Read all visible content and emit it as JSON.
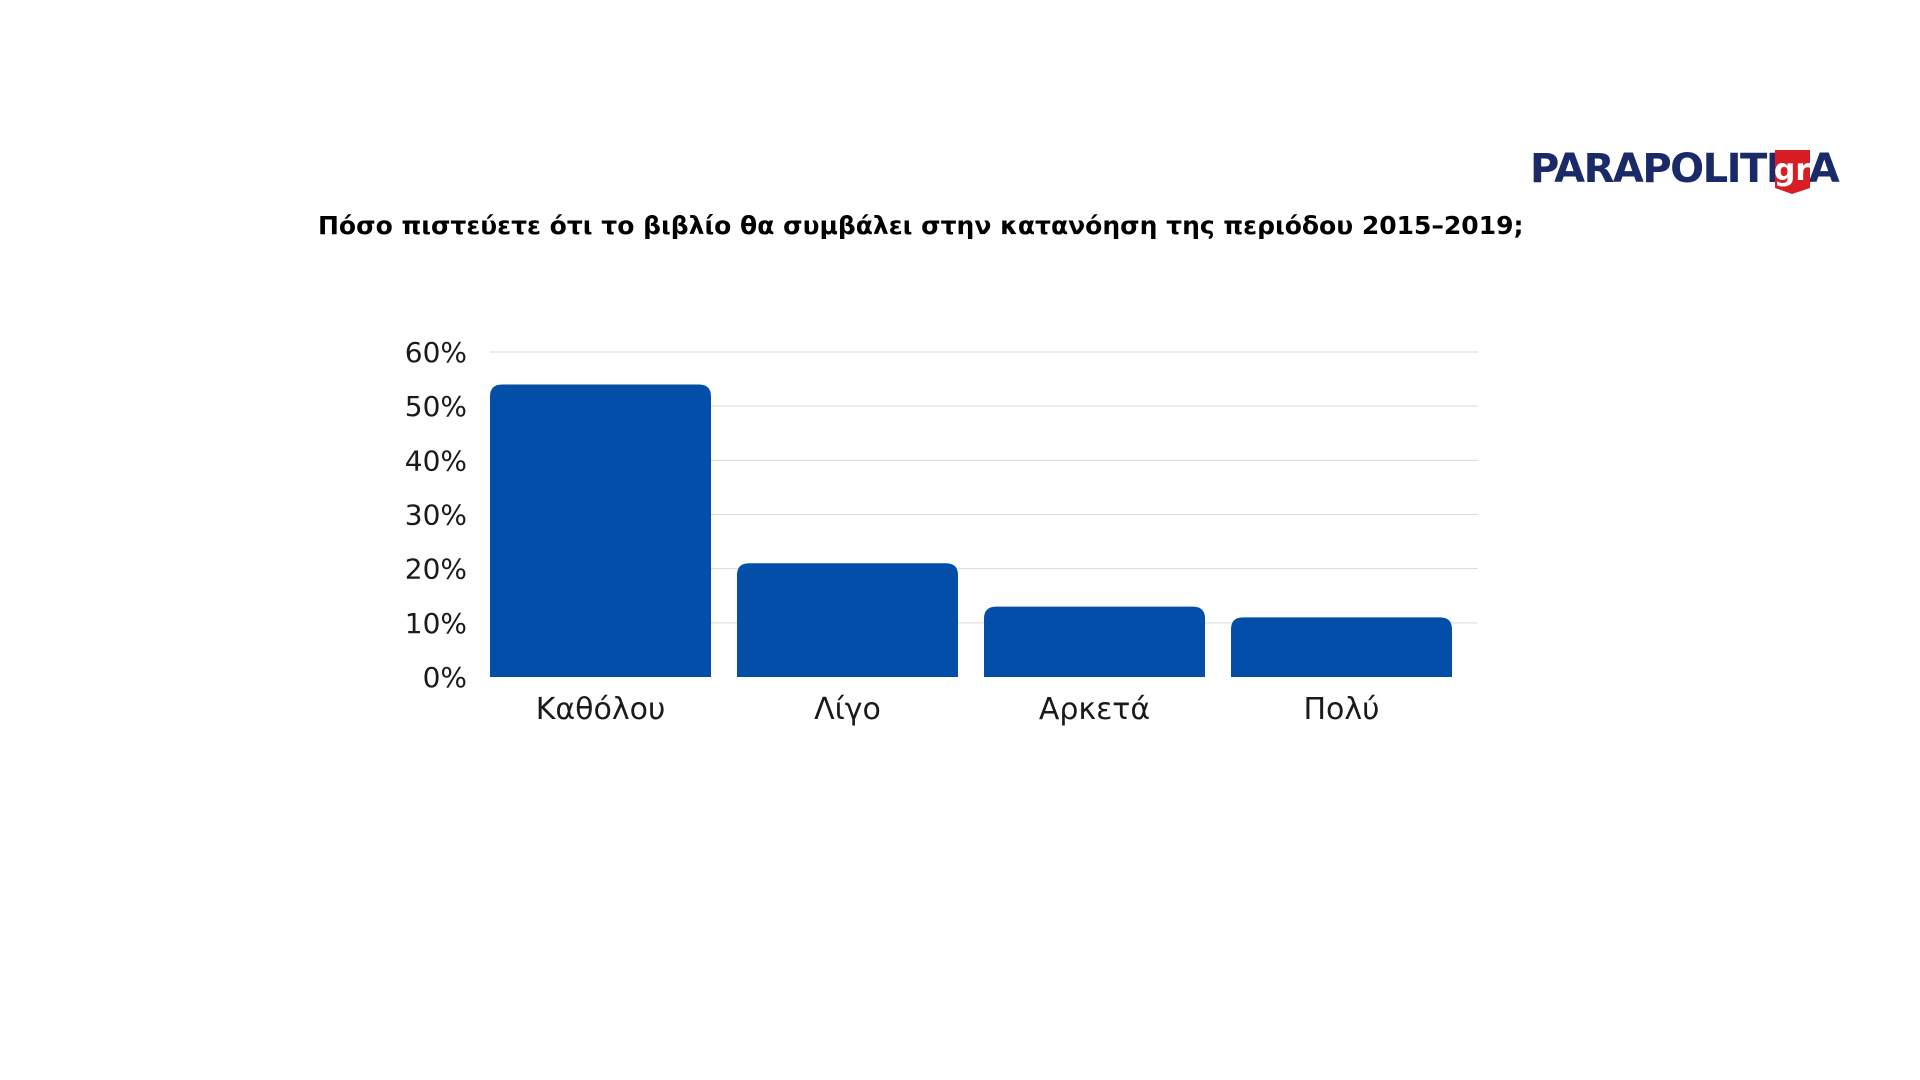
{
  "logo": {
    "main_text": "PARAPOLITIKA",
    "suffix_text": "gr",
    "main_color": "#1a2a68",
    "badge_color": "#d81e24"
  },
  "chart_data": {
    "type": "bar",
    "title": "Πόσο πιστεύετε ότι το βιβλίο θα συμβάλει στην κατανόηση της περιόδου 2015–2019;",
    "xlabel": "",
    "ylabel": "",
    "categories": [
      "Καθόλου",
      "Λίγο",
      "Αρκετά",
      "Πολύ"
    ],
    "values": [
      54,
      21,
      13,
      11
    ],
    "ylim": [
      0,
      60
    ],
    "yticks": [
      0,
      10,
      20,
      30,
      40,
      50,
      60
    ],
    "ytick_labels": [
      "0%",
      "10%",
      "20%",
      "30%",
      "40%",
      "50%",
      "60%"
    ],
    "grid": true,
    "bar_color": "#034ea8",
    "grid_color": "#d9d9d9"
  }
}
